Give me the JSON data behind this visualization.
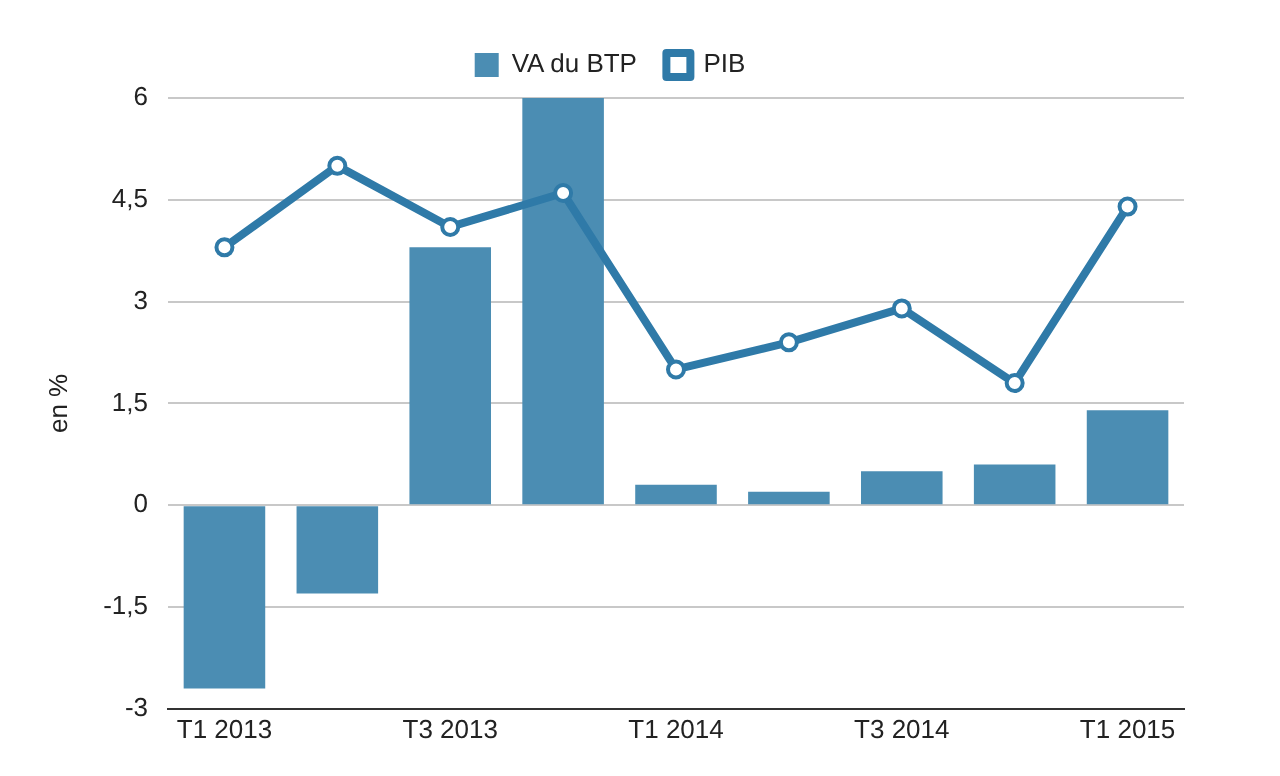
{
  "chart_data": {
    "type": "bar",
    "ylabel": "en %",
    "categories": [
      "T1 2013",
      null,
      "T3 2013",
      null,
      "T1 2014",
      null,
      "T3 2014",
      null,
      "T1 2015"
    ],
    "series": [
      {
        "name": "VA du BTP",
        "color": "#4b8db3",
        "values": [
          -2.7,
          -1.3,
          3.8,
          6.0,
          0.3,
          0.2,
          0.5,
          0.6,
          1.4
        ]
      },
      {
        "name": "PIB",
        "type": "line",
        "color": "#2f7aa8",
        "marker": "circle",
        "values": [
          3.8,
          5.0,
          4.1,
          4.6,
          2.0,
          2.4,
          2.9,
          1.8,
          4.4
        ]
      }
    ],
    "ylim": [
      -3,
      6
    ],
    "yticks": [
      {
        "value": -3,
        "label": "-3"
      },
      {
        "value": -1.5,
        "label": "-1,5"
      },
      {
        "value": 0,
        "label": "0"
      },
      {
        "value": 1.5,
        "label": "1,5"
      },
      {
        "value": 3,
        "label": "3"
      },
      {
        "value": 4.5,
        "label": "4,5"
      },
      {
        "value": 6,
        "label": "6"
      }
    ],
    "grid": "y",
    "legend": "top"
  }
}
